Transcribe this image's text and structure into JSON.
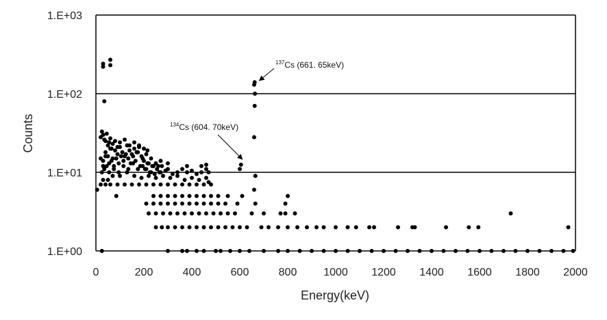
{
  "chart_data": {
    "type": "scatter",
    "title": "",
    "xlabel": "Energy(keV)",
    "ylabel": "Counts",
    "xlim": [
      0,
      2000
    ],
    "ylim": [
      1,
      1000
    ],
    "yscale": "log",
    "grid": "horizontal",
    "marker_color": "#000000",
    "x_ticks": [
      "0",
      "200",
      "400",
      "600",
      "800",
      "1000",
      "1200",
      "1400",
      "1600",
      "1800",
      "2000"
    ],
    "y_ticks": [
      "1.E+00",
      "1.E+01",
      "1.E+02",
      "1.E+03"
    ],
    "annotations": [
      {
        "sup": "137",
        "text": "Cs (661. 65keV)",
        "x": 661.65,
        "y": 130
      },
      {
        "sup": "134",
        "text": "Cs (604. 70keV)",
        "x": 604.7,
        "y": 12.5
      }
    ],
    "series": [
      {
        "points": [
          [
            5,
            6
          ],
          [
            25,
            1
          ],
          [
            300,
            1
          ],
          [
            360,
            1
          ],
          [
            380,
            1
          ],
          [
            420,
            1
          ],
          [
            450,
            1
          ],
          [
            500,
            1
          ],
          [
            520,
            1
          ],
          [
            560,
            1
          ],
          [
            600,
            1
          ],
          [
            640,
            1
          ],
          [
            700,
            1
          ],
          [
            760,
            1
          ],
          [
            800,
            1
          ],
          [
            850,
            1
          ],
          [
            900,
            1
          ],
          [
            950,
            1
          ],
          [
            1000,
            1
          ],
          [
            1050,
            1
          ],
          [
            1100,
            1
          ],
          [
            1150,
            1
          ],
          [
            1200,
            1
          ],
          [
            1250,
            1
          ],
          [
            1300,
            1
          ],
          [
            1350,
            1
          ],
          [
            1400,
            1
          ],
          [
            1450,
            1
          ],
          [
            1500,
            1
          ],
          [
            1550,
            1
          ],
          [
            1600,
            1
          ],
          [
            1650,
            1
          ],
          [
            1700,
            1
          ],
          [
            1750,
            1
          ],
          [
            1800,
            1
          ],
          [
            1850,
            1
          ],
          [
            1900,
            1
          ],
          [
            1950,
            1
          ],
          [
            1990,
            1
          ],
          [
            250,
            2
          ],
          [
            275,
            2
          ],
          [
            300,
            2
          ],
          [
            330,
            2
          ],
          [
            360,
            2
          ],
          [
            390,
            2
          ],
          [
            420,
            2
          ],
          [
            450,
            2
          ],
          [
            480,
            2
          ],
          [
            510,
            2
          ],
          [
            540,
            2
          ],
          [
            570,
            2
          ],
          [
            600,
            2
          ],
          [
            630,
            2
          ],
          [
            690,
            2
          ],
          [
            720,
            2
          ],
          [
            760,
            2
          ],
          [
            800,
            2
          ],
          [
            840,
            2
          ],
          [
            880,
            2
          ],
          [
            920,
            2
          ],
          [
            950,
            2
          ],
          [
            1000,
            2
          ],
          [
            1050,
            2
          ],
          [
            1085,
            2
          ],
          [
            1140,
            2
          ],
          [
            1160,
            2
          ],
          [
            1260,
            2
          ],
          [
            1320,
            2
          ],
          [
            1330,
            2
          ],
          [
            1460,
            2
          ],
          [
            1555,
            2
          ],
          [
            1595,
            2
          ],
          [
            1970,
            2
          ],
          [
            220,
            3
          ],
          [
            250,
            3
          ],
          [
            280,
            3
          ],
          [
            310,
            3
          ],
          [
            340,
            3
          ],
          [
            370,
            3
          ],
          [
            400,
            3
          ],
          [
            430,
            3
          ],
          [
            460,
            3
          ],
          [
            490,
            3
          ],
          [
            520,
            3
          ],
          [
            550,
            3
          ],
          [
            580,
            3
          ],
          [
            650,
            3
          ],
          [
            700,
            3
          ],
          [
            770,
            3
          ],
          [
            790,
            3
          ],
          [
            830,
            3
          ],
          [
            1730,
            3
          ],
          [
            210,
            4
          ],
          [
            240,
            4
          ],
          [
            270,
            4
          ],
          [
            300,
            4
          ],
          [
            330,
            4
          ],
          [
            360,
            4
          ],
          [
            390,
            4
          ],
          [
            420,
            4
          ],
          [
            450,
            4
          ],
          [
            480,
            4
          ],
          [
            510,
            4
          ],
          [
            540,
            4
          ],
          [
            590,
            4
          ],
          [
            665,
            4
          ],
          [
            790,
            4
          ],
          [
            240,
            5
          ],
          [
            270,
            5
          ],
          [
            300,
            5
          ],
          [
            330,
            5
          ],
          [
            360,
            5
          ],
          [
            390,
            5
          ],
          [
            420,
            5
          ],
          [
            450,
            5
          ],
          [
            480,
            5
          ],
          [
            510,
            5
          ],
          [
            550,
            5
          ],
          [
            610,
            5
          ],
          [
            800,
            5
          ],
          [
            85,
            5
          ],
          [
            20,
            7
          ],
          [
            40,
            7
          ],
          [
            60,
            7
          ],
          [
            90,
            7
          ],
          [
            120,
            7
          ],
          [
            150,
            7
          ],
          [
            180,
            7
          ],
          [
            210,
            7
          ],
          [
            240,
            7
          ],
          [
            270,
            7
          ],
          [
            300,
            7
          ],
          [
            330,
            7
          ],
          [
            360,
            7
          ],
          [
            390,
            7
          ],
          [
            420,
            7
          ],
          [
            450,
            7
          ],
          [
            480,
            7
          ],
          [
            660,
            6
          ],
          [
            665,
            9
          ],
          [
            660,
            28
          ],
          [
            662,
            70
          ],
          [
            663,
            100
          ],
          [
            660,
            130
          ],
          [
            662,
            140
          ],
          [
            605,
            12.5
          ],
          [
            600,
            11
          ],
          [
            30,
            8
          ],
          [
            50,
            8
          ],
          [
            70,
            9
          ],
          [
            100,
            9
          ],
          [
            130,
            10
          ],
          [
            160,
            9
          ],
          [
            190,
            8.5
          ],
          [
            220,
            9
          ],
          [
            250,
            8.5
          ],
          [
            280,
            9
          ],
          [
            310,
            8.5
          ],
          [
            340,
            9
          ],
          [
            370,
            8
          ],
          [
            400,
            8.5
          ],
          [
            430,
            8
          ],
          [
            460,
            8.5
          ],
          [
            470,
            7.5
          ],
          [
            25,
            10
          ],
          [
            35,
            11
          ],
          [
            45,
            12
          ],
          [
            55,
            13
          ],
          [
            65,
            14
          ],
          [
            75,
            12
          ],
          [
            85,
            15
          ],
          [
            95,
            13
          ],
          [
            105,
            16
          ],
          [
            115,
            14
          ],
          [
            125,
            17
          ],
          [
            135,
            15
          ],
          [
            145,
            13
          ],
          [
            155,
            16
          ],
          [
            165,
            14
          ],
          [
            175,
            18
          ],
          [
            185,
            12
          ],
          [
            195,
            15
          ],
          [
            205,
            11
          ],
          [
            215,
            13
          ],
          [
            225,
            10
          ],
          [
            235,
            12
          ],
          [
            245,
            9.5
          ],
          [
            255,
            11
          ],
          [
            265,
            10
          ],
          [
            275,
            12
          ],
          [
            290,
            10.5
          ],
          [
            300,
            11
          ],
          [
            320,
            9.5
          ],
          [
            340,
            10
          ],
          [
            360,
            11
          ],
          [
            380,
            10
          ],
          [
            400,
            10.5
          ],
          [
            420,
            9.5
          ],
          [
            440,
            10
          ],
          [
            460,
            11
          ],
          [
            470,
            10
          ],
          [
            30,
            14
          ],
          [
            40,
            18
          ],
          [
            50,
            16
          ],
          [
            60,
            20
          ],
          [
            70,
            15
          ],
          [
            80,
            19
          ],
          [
            90,
            17
          ],
          [
            100,
            21
          ],
          [
            110,
            18
          ],
          [
            120,
            16
          ],
          [
            130,
            22
          ],
          [
            140,
            19
          ],
          [
            150,
            17
          ],
          [
            160,
            20
          ],
          [
            170,
            18
          ],
          [
            180,
            21
          ],
          [
            190,
            16
          ],
          [
            200,
            14
          ],
          [
            210,
            17
          ],
          [
            220,
            13
          ],
          [
            230,
            15
          ],
          [
            240,
            12
          ],
          [
            250,
            13
          ],
          [
            260,
            12
          ],
          [
            270,
            14
          ],
          [
            300,
            13
          ],
          [
            20,
            28
          ],
          [
            25,
            33
          ],
          [
            30,
            30
          ],
          [
            35,
            26
          ],
          [
            40,
            25
          ],
          [
            45,
            31
          ],
          [
            50,
            22
          ],
          [
            55,
            24
          ],
          [
            60,
            27
          ],
          [
            65,
            20
          ],
          [
            70,
            23
          ],
          [
            80,
            25
          ],
          [
            90,
            21
          ],
          [
            100,
            24
          ],
          [
            120,
            26
          ],
          [
            140,
            22
          ],
          [
            160,
            24
          ],
          [
            180,
            22
          ],
          [
            200,
            20
          ],
          [
            215,
            19
          ],
          [
            20,
            15
          ],
          [
            30,
            12
          ],
          [
            40,
            16
          ],
          [
            55,
            10
          ],
          [
            75,
            11
          ],
          [
            95,
            10
          ],
          [
            115,
            12
          ],
          [
            135,
            11
          ],
          [
            155,
            13
          ],
          [
            175,
            11
          ],
          [
            195,
            12
          ],
          [
            210,
            11
          ],
          [
            230,
            10
          ],
          [
            270,
            10
          ],
          [
            380,
            12
          ],
          [
            440,
            12
          ],
          [
            460,
            12.5
          ],
          [
            35,
            80
          ],
          [
            30,
            220
          ],
          [
            30,
            240
          ],
          [
            60,
            230
          ],
          [
            60,
            270
          ]
        ]
      }
    ]
  }
}
